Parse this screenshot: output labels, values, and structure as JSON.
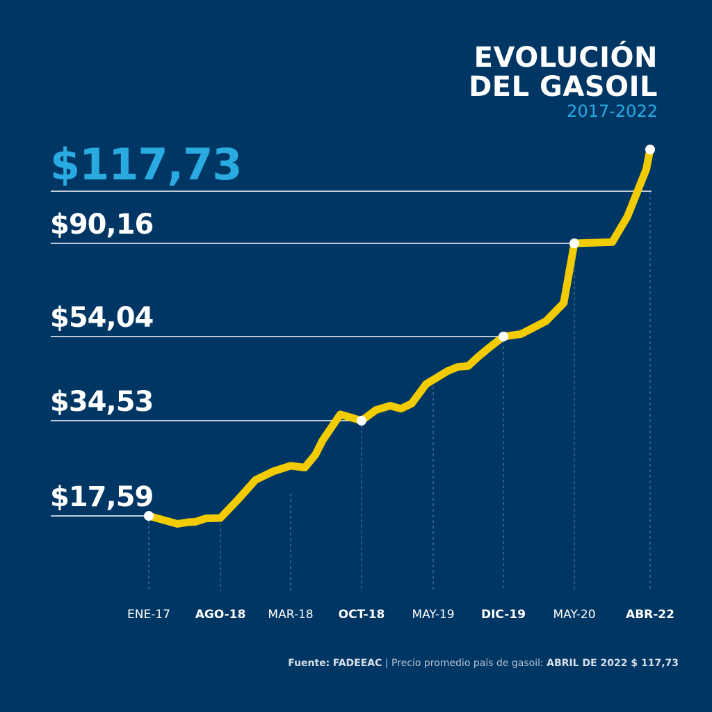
{
  "title_lines": [
    "EVOLUCIÓN",
    "DEL GASOIL"
  ],
  "subtitle": "2017-2022",
  "source": {
    "prefix": "Fuente:",
    "name": "FADEEAC",
    "sep": " | ",
    "text": "Precio promedio país de gasoil:",
    "highlight": "ABRIL DE 2022 $ 117,73"
  },
  "colors": {
    "background": "#003663",
    "line": "#f2cc00",
    "accent": "#29abe2",
    "text": "#ffffff",
    "dash": "#7f97b0"
  },
  "chart_data": {
    "type": "line",
    "title": "EVOLUCIÓN DEL GASOIL",
    "subtitle": "2017-2022",
    "xlabel": "",
    "ylabel": "",
    "grid": false,
    "x_ticks": [
      {
        "label": "ENE-17",
        "bold": false
      },
      {
        "label": "AGO-18",
        "bold": true
      },
      {
        "label": "MAR-18",
        "bold": false
      },
      {
        "label": "OCT-18",
        "bold": true
      },
      {
        "label": "MAY-19",
        "bold": false
      },
      {
        "label": "DIC-19",
        "bold": true
      },
      {
        "label": "MAY-20",
        "bold": false
      },
      {
        "label": "ABR-22",
        "bold": true
      }
    ],
    "value_labels": [
      {
        "label": "$117,73",
        "value": 117.73,
        "highlight": true,
        "point_index": 7
      },
      {
        "label": "$90,16",
        "value": 90.16,
        "highlight": false,
        "point_index": 6
      },
      {
        "label": "$54,04",
        "value": 54.04,
        "highlight": false,
        "point_index": 5
      },
      {
        "label": "$34,53",
        "value": 34.53,
        "highlight": false,
        "point_index": 3
      },
      {
        "label": "$17,59",
        "value": 17.59,
        "highlight": false,
        "point_index": 0
      }
    ],
    "series": [
      {
        "x": [
          0.0,
          0.4,
          0.55,
          0.65,
          0.8,
          1.0,
          1.25,
          1.5,
          1.75,
          2.0,
          2.2,
          2.35,
          2.45,
          2.7,
          3.0,
          3.2,
          3.4,
          3.55,
          3.7,
          3.9,
          4.05,
          4.2,
          4.35,
          4.5,
          4.65,
          4.8,
          5.0,
          5.25,
          5.6,
          5.85,
          6.0,
          6.5,
          6.7,
          6.95,
          7.0
        ],
        "values": [
          17.59,
          15.3,
          15.8,
          15.9,
          16.9,
          17.0,
          20.5,
          24.0,
          25.5,
          26.5,
          26.2,
          28.5,
          31.0,
          36.0,
          34.53,
          37.0,
          38.0,
          37.3,
          38.5,
          43.0,
          44.5,
          46.0,
          47.0,
          47.2,
          49.5,
          51.5,
          54.04,
          55.0,
          60.0,
          67.0,
          90.16,
          90.5,
          98.0,
          112.0,
          117.73
        ]
      }
    ]
  }
}
